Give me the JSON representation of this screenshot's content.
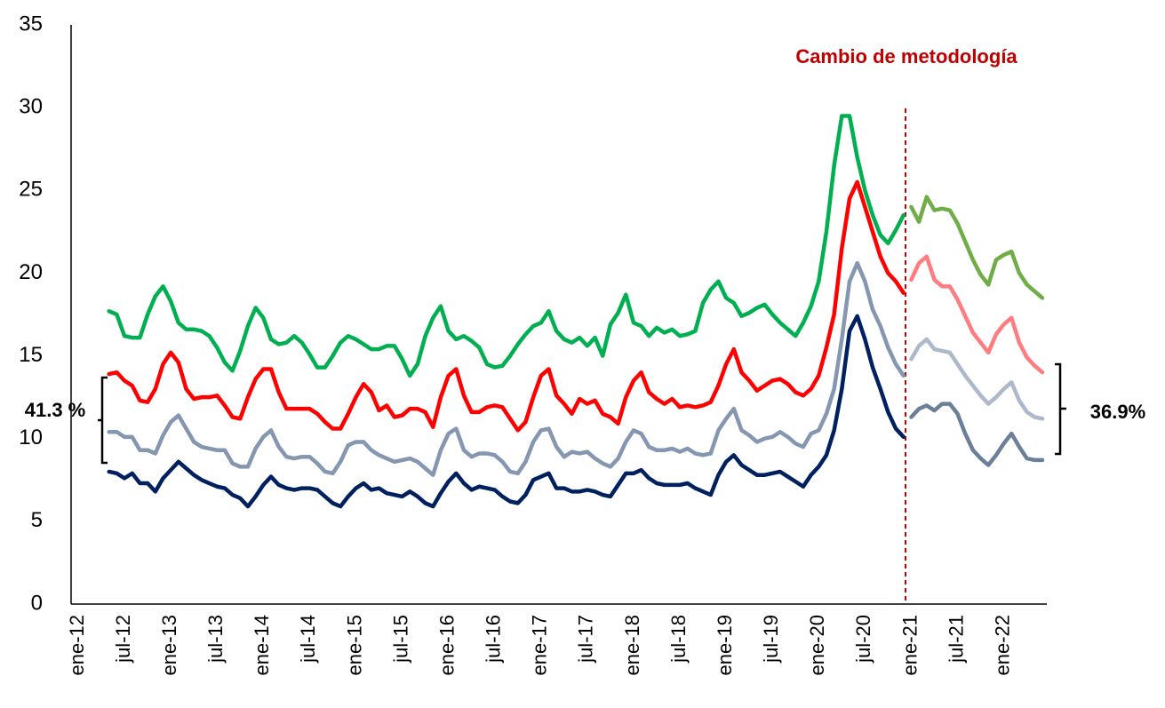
{
  "chart_data": {
    "type": "line",
    "categories": [
      "ene-12",
      null,
      null,
      null,
      null,
      null,
      "jul-12",
      null,
      null,
      null,
      null,
      null,
      "ene-13",
      null,
      null,
      null,
      null,
      null,
      "jul-13",
      null,
      null,
      null,
      null,
      null,
      "ene-14",
      null,
      null,
      null,
      null,
      null,
      "jul-14",
      null,
      null,
      null,
      null,
      null,
      "ene-15",
      null,
      null,
      null,
      null,
      null,
      "jul-15",
      null,
      null,
      null,
      null,
      null,
      "ene-16",
      null,
      null,
      null,
      null,
      null,
      "jul-16",
      null,
      null,
      null,
      null,
      null,
      "ene-17",
      null,
      null,
      null,
      null,
      null,
      "jul-17",
      null,
      null,
      null,
      null,
      null,
      "ene-18",
      null,
      null,
      null,
      null,
      null,
      "jul-18",
      null,
      null,
      null,
      null,
      null,
      "ene-19",
      null,
      null,
      null,
      null,
      null,
      "jul-19",
      null,
      null,
      null,
      null,
      null,
      "ene-20",
      null,
      null,
      null,
      null,
      null,
      "jul-20",
      null,
      null,
      null,
      null,
      null,
      "ene-21",
      null,
      null,
      null,
      null,
      null,
      "jul-21",
      null,
      null,
      null,
      null,
      null,
      "ene-22",
      null,
      null,
      null,
      null,
      null
    ],
    "series": [
      {
        "color": "#00b050",
        "values": [
          null,
          null,
          null,
          null,
          17.7,
          17.5,
          16.2,
          16.1,
          16.1,
          17.5,
          18.6,
          19.2,
          18.3,
          17.0,
          16.6,
          16.6,
          16.5,
          16.2,
          15.5,
          14.6,
          14.1,
          15.3,
          16.8,
          17.9,
          17.3,
          16.0,
          15.7,
          15.8,
          16.2,
          15.8,
          15.1,
          14.3,
          14.3,
          15.0,
          15.8,
          16.2,
          16.0,
          15.7,
          15.4,
          15.4,
          15.6,
          15.6,
          14.8,
          13.8,
          14.5,
          16.2,
          17.3,
          18.0,
          16.5,
          16.0,
          16.2,
          15.9,
          15.5,
          14.5,
          14.3,
          14.4,
          15.0,
          15.7,
          16.3,
          16.8,
          17.0,
          17.7,
          16.5,
          16.0,
          15.8,
          16.1,
          15.6,
          16.1,
          15.0,
          16.9,
          17.6,
          18.7,
          17.0,
          16.8,
          16.2,
          16.7,
          16.4,
          16.6,
          16.2,
          16.3,
          16.5,
          18.2,
          19.0,
          19.5,
          18.5,
          18.2,
          17.4,
          17.6,
          17.9,
          18.1,
          17.5,
          17.0,
          16.6,
          16.2,
          17.0,
          18.0,
          19.5,
          22.5,
          26.5,
          29.5,
          29.5,
          27.0,
          25.0,
          23.5,
          22.3,
          21.8,
          22.6,
          23.5,
          null,
          null,
          null,
          null,
          null,
          null,
          null,
          null,
          null,
          null,
          null,
          null,
          null,
          null,
          null,
          null,
          null,
          null
        ]
      },
      {
        "color": "#ff0000",
        "values": [
          null,
          null,
          null,
          null,
          13.9,
          14.0,
          13.5,
          13.2,
          12.3,
          12.2,
          13.0,
          14.5,
          15.2,
          14.6,
          13.0,
          12.4,
          12.5,
          12.5,
          12.6,
          12.0,
          11.3,
          11.2,
          12.5,
          13.6,
          14.2,
          14.2,
          12.8,
          11.8,
          11.8,
          11.8,
          11.8,
          11.5,
          11.0,
          10.6,
          10.6,
          11.5,
          12.5,
          13.3,
          12.8,
          11.7,
          12.0,
          11.3,
          11.4,
          11.8,
          11.8,
          11.6,
          10.7,
          12.5,
          13.8,
          14.2,
          12.6,
          11.6,
          11.6,
          11.9,
          12.0,
          11.9,
          11.2,
          10.5,
          11.0,
          12.5,
          13.8,
          14.2,
          12.6,
          12.1,
          11.5,
          12.4,
          12.1,
          12.3,
          11.5,
          11.3,
          10.9,
          12.5,
          13.5,
          14.0,
          12.8,
          12.4,
          12.1,
          12.4,
          11.9,
          12.0,
          11.9,
          12.0,
          12.2,
          13.2,
          14.5,
          15.4,
          14.0,
          13.5,
          12.9,
          13.2,
          13.5,
          13.6,
          13.3,
          12.8,
          12.6,
          13.0,
          13.8,
          15.5,
          17.5,
          21.5,
          24.5,
          25.5,
          24.0,
          22.5,
          21.0,
          20.0,
          19.5,
          18.8,
          null,
          null,
          null,
          null,
          null,
          null,
          null,
          null,
          null,
          null,
          null,
          null,
          null,
          null,
          null,
          null,
          null,
          null
        ]
      },
      {
        "color": "#8496b0",
        "values": [
          null,
          null,
          null,
          null,
          10.4,
          10.4,
          10.1,
          10.1,
          9.3,
          9.3,
          9.1,
          10.2,
          11.0,
          11.4,
          10.6,
          9.8,
          9.5,
          9.4,
          9.3,
          9.3,
          8.5,
          8.3,
          8.3,
          9.4,
          10.1,
          10.5,
          9.5,
          8.9,
          8.8,
          8.9,
          8.9,
          8.5,
          8.0,
          7.9,
          8.6,
          9.6,
          9.8,
          9.8,
          9.3,
          9.0,
          8.8,
          8.6,
          8.7,
          8.8,
          8.6,
          8.2,
          7.8,
          9.3,
          10.3,
          10.6,
          9.3,
          8.9,
          9.1,
          9.1,
          9.0,
          8.6,
          8.0,
          7.9,
          8.6,
          9.8,
          10.5,
          10.6,
          9.5,
          8.9,
          9.2,
          9.1,
          9.2,
          8.8,
          8.5,
          8.3,
          8.8,
          9.8,
          10.5,
          10.3,
          9.5,
          9.3,
          9.3,
          9.4,
          9.2,
          9.4,
          9.1,
          9.0,
          9.1,
          10.5,
          11.2,
          11.8,
          10.5,
          10.2,
          9.8,
          10.0,
          10.1,
          10.4,
          10.1,
          9.7,
          9.5,
          10.3,
          10.5,
          11.5,
          13.0,
          16.0,
          19.5,
          20.6,
          19.5,
          17.8,
          16.8,
          15.5,
          14.5,
          13.8,
          null,
          null,
          null,
          null,
          null,
          null,
          null,
          null,
          null,
          null,
          null,
          null,
          null,
          null,
          null,
          null,
          null,
          null
        ]
      },
      {
        "color": "#002060",
        "values": [
          null,
          null,
          null,
          null,
          8.0,
          7.9,
          7.6,
          7.9,
          7.3,
          7.3,
          6.8,
          7.6,
          8.1,
          8.6,
          8.2,
          7.8,
          7.5,
          7.3,
          7.1,
          7.0,
          6.6,
          6.4,
          5.9,
          6.5,
          7.2,
          7.7,
          7.2,
          7.0,
          6.9,
          7.0,
          7.0,
          6.9,
          6.5,
          6.1,
          5.9,
          6.5,
          7.0,
          7.3,
          6.9,
          7.0,
          6.7,
          6.6,
          6.5,
          6.8,
          6.5,
          6.1,
          5.9,
          6.7,
          7.4,
          7.9,
          7.3,
          6.9,
          7.1,
          7.0,
          6.9,
          6.5,
          6.2,
          6.1,
          6.6,
          7.5,
          7.7,
          7.9,
          7.0,
          7.0,
          6.8,
          6.8,
          6.9,
          6.8,
          6.6,
          6.5,
          7.2,
          7.9,
          7.9,
          8.1,
          7.6,
          7.3,
          7.2,
          7.2,
          7.2,
          7.3,
          7.0,
          6.8,
          6.6,
          7.8,
          8.6,
          9.0,
          8.4,
          8.1,
          7.8,
          7.8,
          7.9,
          8.0,
          7.7,
          7.4,
          7.1,
          7.8,
          8.3,
          9.0,
          10.5,
          13.0,
          16.5,
          17.4,
          16.0,
          14.3,
          13.0,
          11.6,
          10.6,
          10.1,
          null,
          null,
          null,
          null,
          null,
          null,
          null,
          null,
          null,
          null,
          null,
          null,
          null,
          null,
          null,
          null,
          null,
          null
        ]
      },
      {
        "color": "#70ad47",
        "values": [
          null,
          null,
          null,
          null,
          null,
          null,
          null,
          null,
          null,
          null,
          null,
          null,
          null,
          null,
          null,
          null,
          null,
          null,
          null,
          null,
          null,
          null,
          null,
          null,
          null,
          null,
          null,
          null,
          null,
          null,
          null,
          null,
          null,
          null,
          null,
          null,
          null,
          null,
          null,
          null,
          null,
          null,
          null,
          null,
          null,
          null,
          null,
          null,
          null,
          null,
          null,
          null,
          null,
          null,
          null,
          null,
          null,
          null,
          null,
          null,
          null,
          null,
          null,
          null,
          null,
          null,
          null,
          null,
          null,
          null,
          null,
          null,
          null,
          null,
          null,
          null,
          null,
          null,
          null,
          null,
          null,
          null,
          null,
          null,
          null,
          null,
          null,
          null,
          null,
          null,
          null,
          null,
          null,
          null,
          null,
          null,
          null,
          null,
          null,
          null,
          null,
          null,
          null,
          null,
          null,
          null,
          null,
          null,
          24.0,
          23.1,
          24.6,
          23.8,
          23.9,
          23.8,
          23.0,
          21.9,
          20.8,
          19.9,
          19.3,
          20.8,
          21.1,
          21.3,
          20.0,
          19.3,
          18.9,
          18.5
        ]
      },
      {
        "color": "#ff7c80",
        "values": [
          null,
          null,
          null,
          null,
          null,
          null,
          null,
          null,
          null,
          null,
          null,
          null,
          null,
          null,
          null,
          null,
          null,
          null,
          null,
          null,
          null,
          null,
          null,
          null,
          null,
          null,
          null,
          null,
          null,
          null,
          null,
          null,
          null,
          null,
          null,
          null,
          null,
          null,
          null,
          null,
          null,
          null,
          null,
          null,
          null,
          null,
          null,
          null,
          null,
          null,
          null,
          null,
          null,
          null,
          null,
          null,
          null,
          null,
          null,
          null,
          null,
          null,
          null,
          null,
          null,
          null,
          null,
          null,
          null,
          null,
          null,
          null,
          null,
          null,
          null,
          null,
          null,
          null,
          null,
          null,
          null,
          null,
          null,
          null,
          null,
          null,
          null,
          null,
          null,
          null,
          null,
          null,
          null,
          null,
          null,
          null,
          null,
          null,
          null,
          null,
          null,
          null,
          null,
          null,
          null,
          null,
          null,
          null,
          19.6,
          20.6,
          21.0,
          19.6,
          19.2,
          19.2,
          18.4,
          17.4,
          16.4,
          15.8,
          15.2,
          16.3,
          16.9,
          17.3,
          15.8,
          14.9,
          14.4,
          14.0
        ]
      },
      {
        "color": "#adb9ca",
        "values": [
          null,
          null,
          null,
          null,
          null,
          null,
          null,
          null,
          null,
          null,
          null,
          null,
          null,
          null,
          null,
          null,
          null,
          null,
          null,
          null,
          null,
          null,
          null,
          null,
          null,
          null,
          null,
          null,
          null,
          null,
          null,
          null,
          null,
          null,
          null,
          null,
          null,
          null,
          null,
          null,
          null,
          null,
          null,
          null,
          null,
          null,
          null,
          null,
          null,
          null,
          null,
          null,
          null,
          null,
          null,
          null,
          null,
          null,
          null,
          null,
          null,
          null,
          null,
          null,
          null,
          null,
          null,
          null,
          null,
          null,
          null,
          null,
          null,
          null,
          null,
          null,
          null,
          null,
          null,
          null,
          null,
          null,
          null,
          null,
          null,
          null,
          null,
          null,
          null,
          null,
          null,
          null,
          null,
          null,
          null,
          null,
          null,
          null,
          null,
          null,
          null,
          null,
          null,
          null,
          null,
          null,
          null,
          null,
          14.8,
          15.6,
          16.0,
          15.4,
          15.3,
          15.2,
          14.5,
          13.8,
          13.2,
          12.6,
          12.1,
          12.5,
          13.0,
          13.4,
          12.3,
          11.6,
          11.3,
          11.2
        ]
      },
      {
        "color": "#6b7f99",
        "values": [
          null,
          null,
          null,
          null,
          null,
          null,
          null,
          null,
          null,
          null,
          null,
          null,
          null,
          null,
          null,
          null,
          null,
          null,
          null,
          null,
          null,
          null,
          null,
          null,
          null,
          null,
          null,
          null,
          null,
          null,
          null,
          null,
          null,
          null,
          null,
          null,
          null,
          null,
          null,
          null,
          null,
          null,
          null,
          null,
          null,
          null,
          null,
          null,
          null,
          null,
          null,
          null,
          null,
          null,
          null,
          null,
          null,
          null,
          null,
          null,
          null,
          null,
          null,
          null,
          null,
          null,
          null,
          null,
          null,
          null,
          null,
          null,
          null,
          null,
          null,
          null,
          null,
          null,
          null,
          null,
          null,
          null,
          null,
          null,
          null,
          null,
          null,
          null,
          null,
          null,
          null,
          null,
          null,
          null,
          null,
          null,
          null,
          null,
          null,
          null,
          null,
          null,
          null,
          null,
          null,
          null,
          null,
          null,
          11.3,
          11.8,
          12.0,
          11.7,
          12.1,
          12.1,
          11.5,
          10.3,
          9.3,
          8.8,
          8.4,
          9.0,
          9.7,
          10.3,
          9.5,
          8.8,
          8.7,
          8.7
        ]
      }
    ],
    "ylim": [
      0,
      35
    ],
    "yticks": [
      0,
      5,
      10,
      15,
      20,
      25,
      30,
      35
    ],
    "grid": false,
    "annotations": [
      "Cambio de metodología",
      "41.3 %",
      "36.9%"
    ]
  }
}
